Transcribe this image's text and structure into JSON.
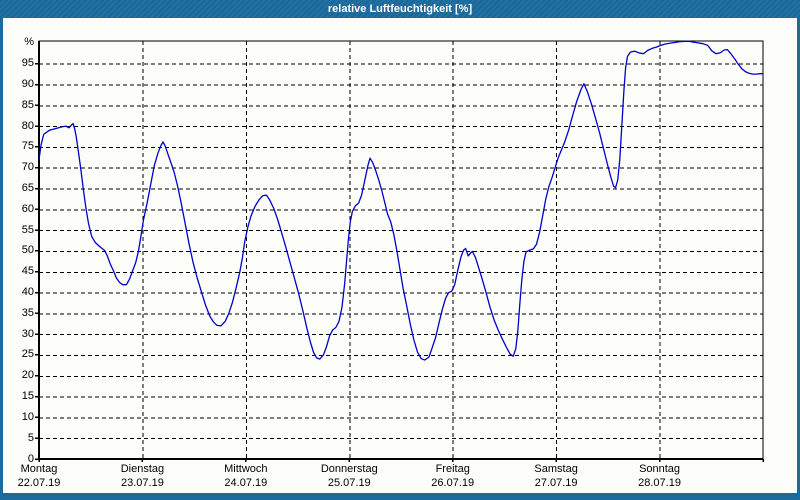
{
  "window": {
    "title": "relative Luftfeuchtigkeit [%]",
    "title_bar_color": "#1d6b9c",
    "border_color": "#1d6b9c",
    "panel_color": "#fdfdfa"
  },
  "chart_data": {
    "type": "line",
    "title": "relative Luftfeuchtigkeit [%]",
    "ylabel": "%",
    "xlabel": "",
    "ylim": [
      0,
      100.5
    ],
    "grid": "dashed-black",
    "legend": "none",
    "y_unit_label": "%",
    "y_ticks": [
      0,
      5,
      10,
      15,
      20,
      25,
      30,
      35,
      40,
      45,
      50,
      55,
      60,
      65,
      70,
      75,
      80,
      85,
      90,
      95
    ],
    "x_axis": {
      "days": [
        {
          "name": "Montag",
          "date": "22.07.19"
        },
        {
          "name": "Dienstag",
          "date": "23.07.19"
        },
        {
          "name": "Mittwoch",
          "date": "24.07.19"
        },
        {
          "name": "Donnerstag",
          "date": "25.07.19"
        },
        {
          "name": "Freitag",
          "date": "26.07.19"
        },
        {
          "name": "Samstag",
          "date": "27.07.19"
        },
        {
          "name": "Sonntag",
          "date": "28.07.19"
        }
      ],
      "x_unit": "days_from_monday_00h",
      "range_days": [
        0,
        7
      ]
    },
    "series": [
      {
        "name": "relative Luftfeuchtigkeit",
        "color": "#0000cc",
        "points": [
          [
            0,
            72
          ],
          [
            0.02,
            75.5
          ],
          [
            0.045,
            78
          ],
          [
            0.1,
            79
          ],
          [
            0.16,
            79.4
          ],
          [
            0.22,
            79.8
          ],
          [
            0.26,
            80
          ],
          [
            0.29,
            79.6
          ],
          [
            0.315,
            80.3
          ],
          [
            0.33,
            80.6
          ],
          [
            0.345,
            79.3
          ],
          [
            0.36,
            77.5
          ],
          [
            0.38,
            74
          ],
          [
            0.405,
            69.5
          ],
          [
            0.43,
            64.5
          ],
          [
            0.455,
            60
          ],
          [
            0.48,
            56.5
          ],
          [
            0.51,
            53.5
          ],
          [
            0.545,
            52
          ],
          [
            0.58,
            51.2
          ],
          [
            0.61,
            50.6
          ],
          [
            0.635,
            50.1
          ],
          [
            0.66,
            48.8
          ],
          [
            0.69,
            46.8
          ],
          [
            0.72,
            45.2
          ],
          [
            0.75,
            43.4
          ],
          [
            0.78,
            42.4
          ],
          [
            0.81,
            41.9
          ],
          [
            0.845,
            41.9
          ],
          [
            0.875,
            43.2
          ],
          [
            0.905,
            45.2
          ],
          [
            0.935,
            47.2
          ],
          [
            0.962,
            50
          ],
          [
            0.985,
            53.5
          ],
          [
            1.01,
            57.5
          ],
          [
            1.045,
            61.5
          ],
          [
            1.08,
            66
          ],
          [
            1.115,
            70.5
          ],
          [
            1.15,
            73.5
          ],
          [
            1.18,
            75.4
          ],
          [
            1.2,
            76.2
          ],
          [
            1.22,
            75.2
          ],
          [
            1.25,
            73
          ],
          [
            1.28,
            70.9
          ],
          [
            1.31,
            68.6
          ],
          [
            1.34,
            65.6
          ],
          [
            1.375,
            61.5
          ],
          [
            1.41,
            57
          ],
          [
            1.45,
            51.8
          ],
          [
            1.49,
            47.2
          ],
          [
            1.53,
            43.5
          ],
          [
            1.57,
            40.2
          ],
          [
            1.61,
            37
          ],
          [
            1.65,
            34.4
          ],
          [
            1.685,
            33
          ],
          [
            1.72,
            32.1
          ],
          [
            1.76,
            32
          ],
          [
            1.8,
            33.1
          ],
          [
            1.835,
            35
          ],
          [
            1.87,
            37.6
          ],
          [
            1.905,
            41
          ],
          [
            1.94,
            44.8
          ],
          [
            1.968,
            48.5
          ],
          [
            1.99,
            52.3
          ],
          [
            2.02,
            55.8
          ],
          [
            2.05,
            58.4
          ],
          [
            2.09,
            60.8
          ],
          [
            2.13,
            62.4
          ],
          [
            2.165,
            63.3
          ],
          [
            2.2,
            63.4
          ],
          [
            2.23,
            62.3
          ],
          [
            2.27,
            60.2
          ],
          [
            2.31,
            57.4
          ],
          [
            2.35,
            54
          ],
          [
            2.39,
            50.6
          ],
          [
            2.43,
            47
          ],
          [
            2.47,
            43.4
          ],
          [
            2.51,
            39.8
          ],
          [
            2.55,
            35.8
          ],
          [
            2.59,
            31.4
          ],
          [
            2.625,
            28
          ],
          [
            2.655,
            25.6
          ],
          [
            2.685,
            24.3
          ],
          [
            2.715,
            24
          ],
          [
            2.75,
            25
          ],
          [
            2.78,
            27
          ],
          [
            2.81,
            29.6
          ],
          [
            2.84,
            31
          ],
          [
            2.87,
            31.6
          ],
          [
            2.9,
            33
          ],
          [
            2.93,
            36.5
          ],
          [
            2.955,
            42
          ],
          [
            2.975,
            48
          ],
          [
            2.992,
            53
          ],
          [
            3.01,
            57
          ],
          [
            3.03,
            59.5
          ],
          [
            3.06,
            60.9
          ],
          [
            3.09,
            61.5
          ],
          [
            3.12,
            63.5
          ],
          [
            3.15,
            67
          ],
          [
            3.18,
            70.5
          ],
          [
            3.2,
            72.3
          ],
          [
            3.225,
            71.3
          ],
          [
            3.255,
            69.3
          ],
          [
            3.285,
            67
          ],
          [
            3.315,
            64.4
          ],
          [
            3.345,
            61.4
          ],
          [
            3.37,
            58.8
          ],
          [
            3.4,
            57
          ],
          [
            3.43,
            54
          ],
          [
            3.46,
            50
          ],
          [
            3.49,
            45.5
          ],
          [
            3.52,
            41
          ],
          [
            3.555,
            36.8
          ],
          [
            3.59,
            32.4
          ],
          [
            3.625,
            28.6
          ],
          [
            3.66,
            25.7
          ],
          [
            3.695,
            24.1
          ],
          [
            3.73,
            23.8
          ],
          [
            3.77,
            24.5
          ],
          [
            3.8,
            26.6
          ],
          [
            3.835,
            29.2
          ],
          [
            3.87,
            33
          ],
          [
            3.9,
            36
          ],
          [
            3.93,
            38.6
          ],
          [
            3.96,
            40
          ],
          [
            3.99,
            40.3
          ],
          [
            4.02,
            42
          ],
          [
            4.05,
            45.5
          ],
          [
            4.08,
            48.6
          ],
          [
            4.105,
            50.2
          ],
          [
            4.125,
            50.6
          ],
          [
            4.15,
            48.8
          ],
          [
            4.17,
            49.4
          ],
          [
            4.19,
            49.9
          ],
          [
            4.22,
            48.4
          ],
          [
            4.25,
            46
          ],
          [
            4.285,
            43.2
          ],
          [
            4.32,
            40.2
          ],
          [
            4.36,
            36.6
          ],
          [
            4.4,
            33.4
          ],
          [
            4.44,
            31
          ],
          [
            4.48,
            28.8
          ],
          [
            4.52,
            26.8
          ],
          [
            4.555,
            25.2
          ],
          [
            4.585,
            24.7
          ],
          [
            4.61,
            26.5
          ],
          [
            4.63,
            31
          ],
          [
            4.65,
            37.5
          ],
          [
            4.668,
            43
          ],
          [
            4.688,
            47.5
          ],
          [
            4.71,
            49.8
          ],
          [
            4.745,
            50.2
          ],
          [
            4.78,
            50.5
          ],
          [
            4.81,
            51.6
          ],
          [
            4.84,
            54.5
          ],
          [
            4.87,
            58.5
          ],
          [
            4.9,
            62.5
          ],
          [
            4.93,
            65.5
          ],
          [
            4.96,
            67.6
          ],
          [
            4.99,
            70
          ],
          [
            5.02,
            72.4
          ],
          [
            5.05,
            74.2
          ],
          [
            5.08,
            76
          ],
          [
            5.12,
            79
          ],
          [
            5.16,
            82.6
          ],
          [
            5.2,
            86
          ],
          [
            5.24,
            88.8
          ],
          [
            5.268,
            90.2
          ],
          [
            5.3,
            88.4
          ],
          [
            5.34,
            85.4
          ],
          [
            5.38,
            82
          ],
          [
            5.42,
            78.4
          ],
          [
            5.46,
            74.4
          ],
          [
            5.5,
            70.4
          ],
          [
            5.53,
            67.6
          ],
          [
            5.555,
            65.6
          ],
          [
            5.575,
            65.2
          ],
          [
            5.595,
            67
          ],
          [
            5.615,
            72
          ],
          [
            5.635,
            80
          ],
          [
            5.655,
            88.5
          ],
          [
            5.672,
            94
          ],
          [
            5.69,
            96.8
          ],
          [
            5.72,
            97.8
          ],
          [
            5.76,
            98
          ],
          [
            5.8,
            97.6
          ],
          [
            5.845,
            97.4
          ],
          [
            5.885,
            98.2
          ],
          [
            5.93,
            98.7
          ],
          [
            5.97,
            99
          ],
          [
            6.0,
            99.3
          ],
          [
            6.05,
            99.7
          ],
          [
            6.12,
            100
          ],
          [
            6.2,
            100.3
          ],
          [
            6.28,
            100.4
          ],
          [
            6.35,
            100.1
          ],
          [
            6.42,
            99.8
          ],
          [
            6.465,
            99.4
          ],
          [
            6.505,
            98.1
          ],
          [
            6.545,
            97.4
          ],
          [
            6.585,
            97.6
          ],
          [
            6.625,
            98.3
          ],
          [
            6.655,
            98.4
          ],
          [
            6.69,
            97.4
          ],
          [
            6.725,
            96.2
          ],
          [
            6.76,
            94.9
          ],
          [
            6.795,
            93.8
          ],
          [
            6.83,
            93.1
          ],
          [
            6.865,
            92.7
          ],
          [
            6.9,
            92.5
          ],
          [
            6.94,
            92.5
          ],
          [
            6.97,
            92.6
          ],
          [
            7.0,
            92.6
          ]
        ]
      }
    ]
  }
}
